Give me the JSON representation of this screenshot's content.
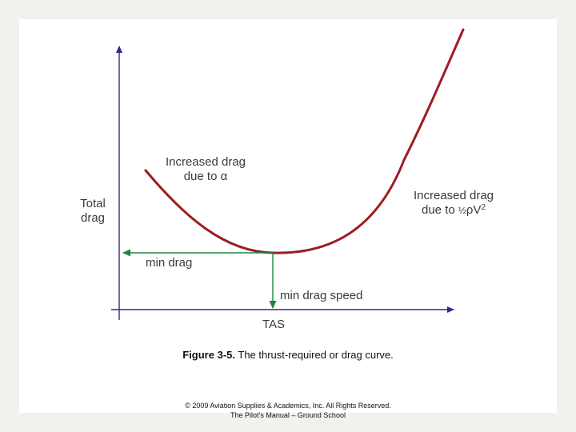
{
  "diagram": {
    "y_axis_label_line1": "Total",
    "y_axis_label_line2": "drag",
    "x_axis_label": "TAS",
    "left_annotation_line1": "Increased drag",
    "left_annotation_line2": "due to α",
    "right_annotation_line1": "Increased drag",
    "right_annotation_line2_prefix": "due to ",
    "right_annotation_fraction": "½",
    "right_annotation_rho": "ρ",
    "right_annotation_v": "V",
    "right_annotation_exponent": "2",
    "min_drag_label": "min drag",
    "min_drag_speed_label": "min drag speed",
    "colors": {
      "curve": "#9c1c24",
      "axes": "#2b2b86",
      "min_arrows": "#1a8a3a"
    }
  },
  "caption": {
    "figure_number": "Figure 3-5.",
    "text": " The thrust-required or drag curve."
  },
  "footer": {
    "line1": "© 2009 Aviation Supplies & Academics, Inc. All Rights Reserved.",
    "line2": "The Pilot’s Manual – Ground School"
  }
}
